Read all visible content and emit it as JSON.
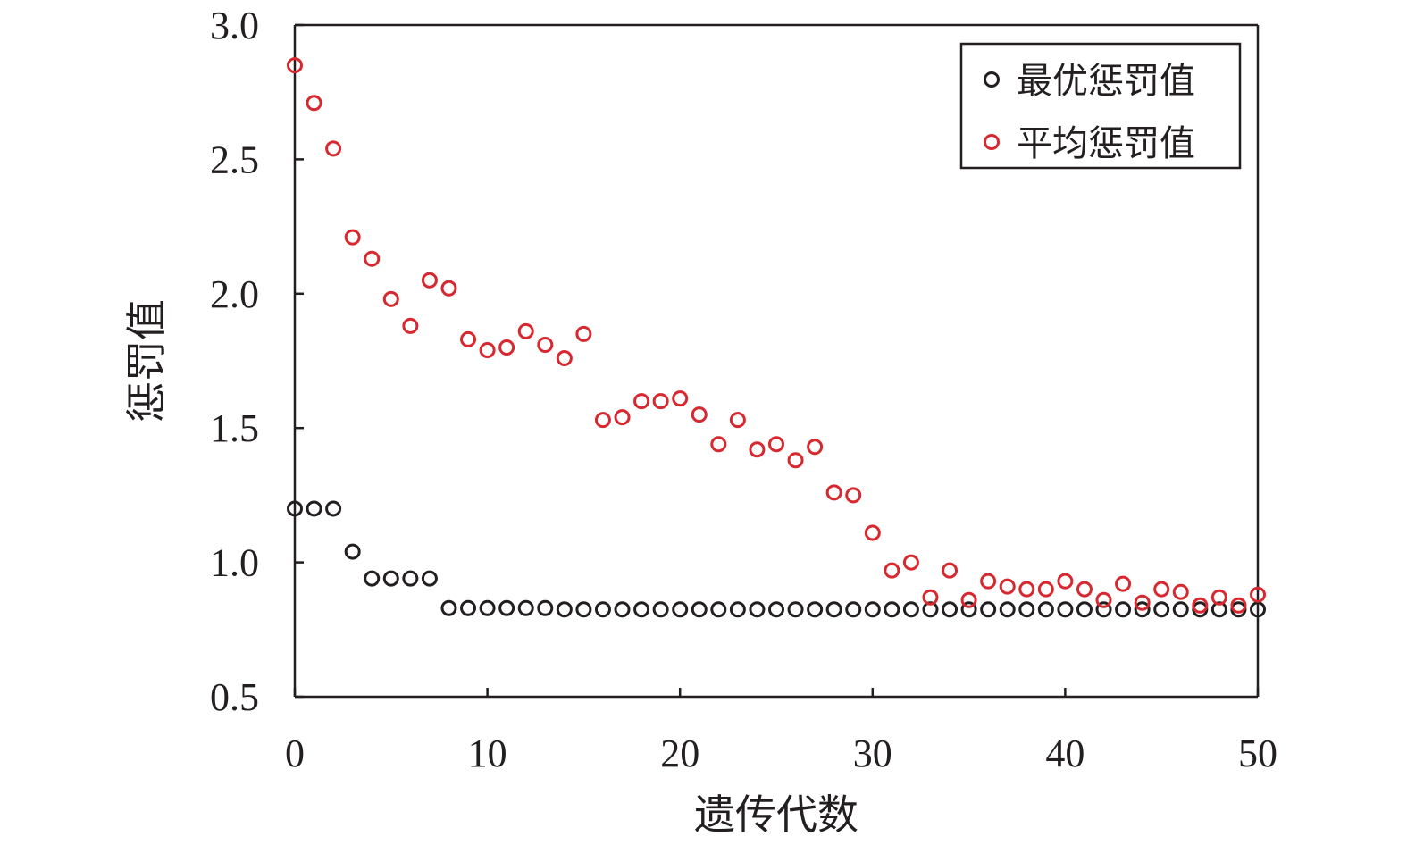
{
  "chart_data": {
    "type": "scatter",
    "title": "",
    "xlabel": "遗传代数",
    "ylabel": "惩罚值",
    "xlim": [
      0,
      50
    ],
    "ylim": [
      0.5,
      3.0
    ],
    "xticks": [
      "0",
      "10",
      "20",
      "30",
      "40",
      "50"
    ],
    "yticks": [
      "0.5",
      "1.0",
      "1.5",
      "2.0",
      "2.5",
      "3.0"
    ],
    "grid": false,
    "legend_position": "top-right",
    "x": [
      0,
      1,
      2,
      3,
      4,
      5,
      6,
      7,
      8,
      9,
      10,
      11,
      12,
      13,
      14,
      15,
      16,
      17,
      18,
      19,
      20,
      21,
      22,
      23,
      24,
      25,
      26,
      27,
      28,
      29,
      30,
      31,
      32,
      33,
      34,
      35,
      36,
      37,
      38,
      39,
      40,
      41,
      42,
      43,
      44,
      45,
      46,
      47,
      48,
      49,
      50
    ],
    "series": [
      {
        "name": "最优惩罚值",
        "color": "#231f20",
        "marker": "open-circle",
        "values": [
          1.2,
          1.2,
          1.2,
          1.04,
          0.94,
          0.94,
          0.94,
          0.94,
          0.83,
          0.83,
          0.83,
          0.83,
          0.83,
          0.83,
          0.825,
          0.825,
          0.825,
          0.825,
          0.825,
          0.825,
          0.825,
          0.825,
          0.825,
          0.825,
          0.825,
          0.825,
          0.825,
          0.825,
          0.825,
          0.825,
          0.825,
          0.825,
          0.825,
          0.825,
          0.825,
          0.825,
          0.825,
          0.825,
          0.825,
          0.825,
          0.825,
          0.825,
          0.825,
          0.825,
          0.825,
          0.825,
          0.825,
          0.825,
          0.825,
          0.825,
          0.825
        ]
      },
      {
        "name": "平均惩罚值",
        "color": "#d7282f",
        "marker": "open-circle",
        "values": [
          2.85,
          2.71,
          2.54,
          2.21,
          2.13,
          1.98,
          1.88,
          2.05,
          2.02,
          1.83,
          1.79,
          1.8,
          1.86,
          1.81,
          1.76,
          1.85,
          1.53,
          1.54,
          1.6,
          1.6,
          1.61,
          1.55,
          1.44,
          1.53,
          1.42,
          1.44,
          1.38,
          1.43,
          1.26,
          1.25,
          1.11,
          0.97,
          1.0,
          0.87,
          0.97,
          0.86,
          0.93,
          0.91,
          0.9,
          0.9,
          0.93,
          0.9,
          0.86,
          0.92,
          0.85,
          0.9,
          0.89,
          0.84,
          0.87,
          0.84,
          0.88
        ]
      }
    ]
  }
}
